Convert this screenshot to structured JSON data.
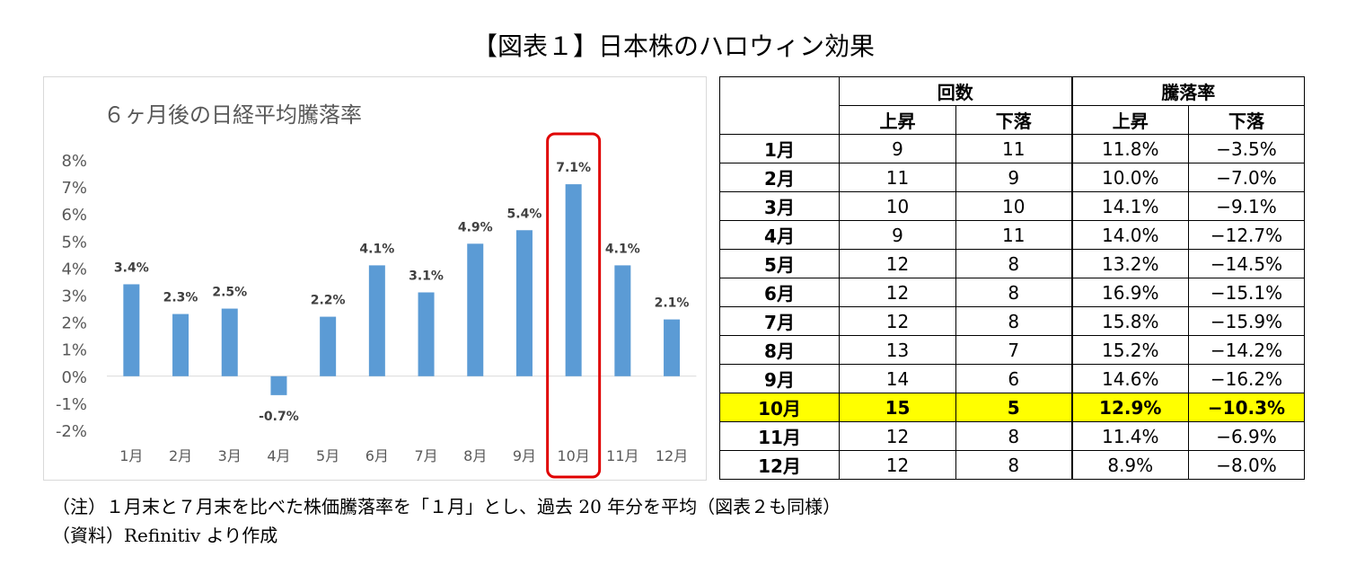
{
  "title": "【図表１】日本株のハロウィン効果",
  "chart_data": {
    "type": "bar",
    "title": "６ヶ月後の日経平均騰落率",
    "categories": [
      "1月",
      "2月",
      "3月",
      "4月",
      "5月",
      "6月",
      "7月",
      "8月",
      "9月",
      "10月",
      "11月",
      "12月"
    ],
    "values": [
      3.4,
      2.3,
      2.5,
      -0.7,
      2.2,
      4.1,
      3.1,
      4.9,
      5.4,
      7.1,
      4.1,
      2.1
    ],
    "data_labels": [
      "3.4%",
      "2.3%",
      "2.5%",
      "-0.7%",
      "2.2%",
      "4.1%",
      "3.1%",
      "4.9%",
      "5.4%",
      "7.1%",
      "4.1%",
      "2.1%"
    ],
    "yticks": [
      "8%",
      "7%",
      "6%",
      "5%",
      "4%",
      "3%",
      "2%",
      "1%",
      "0%",
      "-1%",
      "-2%"
    ],
    "ylim": [
      -2,
      8
    ],
    "grid": false,
    "bar_color": "#5b9bd5",
    "highlight_category": "10月",
    "highlight_color": "#e00000"
  },
  "table": {
    "group_headers": [
      "回数",
      "騰落率"
    ],
    "sub_headers": [
      "上昇",
      "下落",
      "上昇",
      "下落"
    ],
    "rows": [
      {
        "month": "1月",
        "up": "9",
        "down": "11",
        "rise": "11.8%",
        "fall": "−3.5%"
      },
      {
        "month": "2月",
        "up": "11",
        "down": "9",
        "rise": "10.0%",
        "fall": "−7.0%"
      },
      {
        "month": "3月",
        "up": "10",
        "down": "10",
        "rise": "14.1%",
        "fall": "−9.1%"
      },
      {
        "month": "4月",
        "up": "9",
        "down": "11",
        "rise": "14.0%",
        "fall": "−12.7%"
      },
      {
        "month": "5月",
        "up": "12",
        "down": "8",
        "rise": "13.2%",
        "fall": "−14.5%"
      },
      {
        "month": "6月",
        "up": "12",
        "down": "8",
        "rise": "16.9%",
        "fall": "−15.1%"
      },
      {
        "month": "7月",
        "up": "12",
        "down": "8",
        "rise": "15.8%",
        "fall": "−15.9%"
      },
      {
        "month": "8月",
        "up": "13",
        "down": "7",
        "rise": "15.2%",
        "fall": "−14.2%"
      },
      {
        "month": "9月",
        "up": "14",
        "down": "6",
        "rise": "14.6%",
        "fall": "−16.2%"
      },
      {
        "month": "10月",
        "up": "15",
        "down": "5",
        "rise": "12.9%",
        "fall": "−10.3%"
      },
      {
        "month": "11月",
        "up": "12",
        "down": "8",
        "rise": "11.4%",
        "fall": "−6.9%"
      },
      {
        "month": "12月",
        "up": "12",
        "down": "8",
        "rise": "8.9%",
        "fall": "−8.0%"
      }
    ],
    "highlight_row": "10月",
    "highlight_color": "#ffff00"
  },
  "notes": {
    "note": "（注）１月末と７月末を比べた株価騰落率を「１月」とし、過去 20 年分を平均（図表２も同様）",
    "source": "（資料）Refinitiv より作成"
  }
}
